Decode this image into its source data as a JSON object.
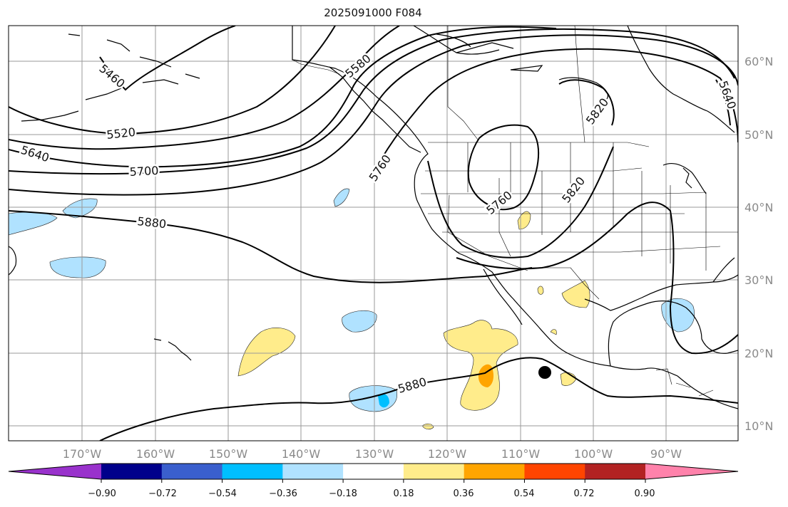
{
  "title": "2025091000 F084",
  "map": {
    "lon_ticks": [
      "170°W",
      "160°W",
      "150°W",
      "140°W",
      "130°W",
      "120°W",
      "110°W",
      "100°W",
      "90°W"
    ],
    "lat_ticks": [
      "60°N",
      "50°N",
      "40°N",
      "30°N",
      "20°N",
      "10°N"
    ],
    "contour_labels": [
      "5460",
      "5520",
      "5580",
      "5640",
      "5700",
      "5760",
      "5760",
      "5820",
      "5820",
      "5880",
      "5880",
      "5640"
    ]
  },
  "colorbar": {
    "ticks": [
      "−0.90",
      "−0.72",
      "−0.54",
      "−0.36",
      "−0.18",
      "0.18",
      "0.36",
      "0.54",
      "0.72",
      "0.90"
    ],
    "colors": [
      "#9932cc",
      "#00008b",
      "#3a5fcd",
      "#00bfff",
      "#b0e2ff",
      "#ffffff",
      "#ffec8b",
      "#ffa500",
      "#ff4500",
      "#b22222",
      "#ff82ab"
    ]
  }
}
